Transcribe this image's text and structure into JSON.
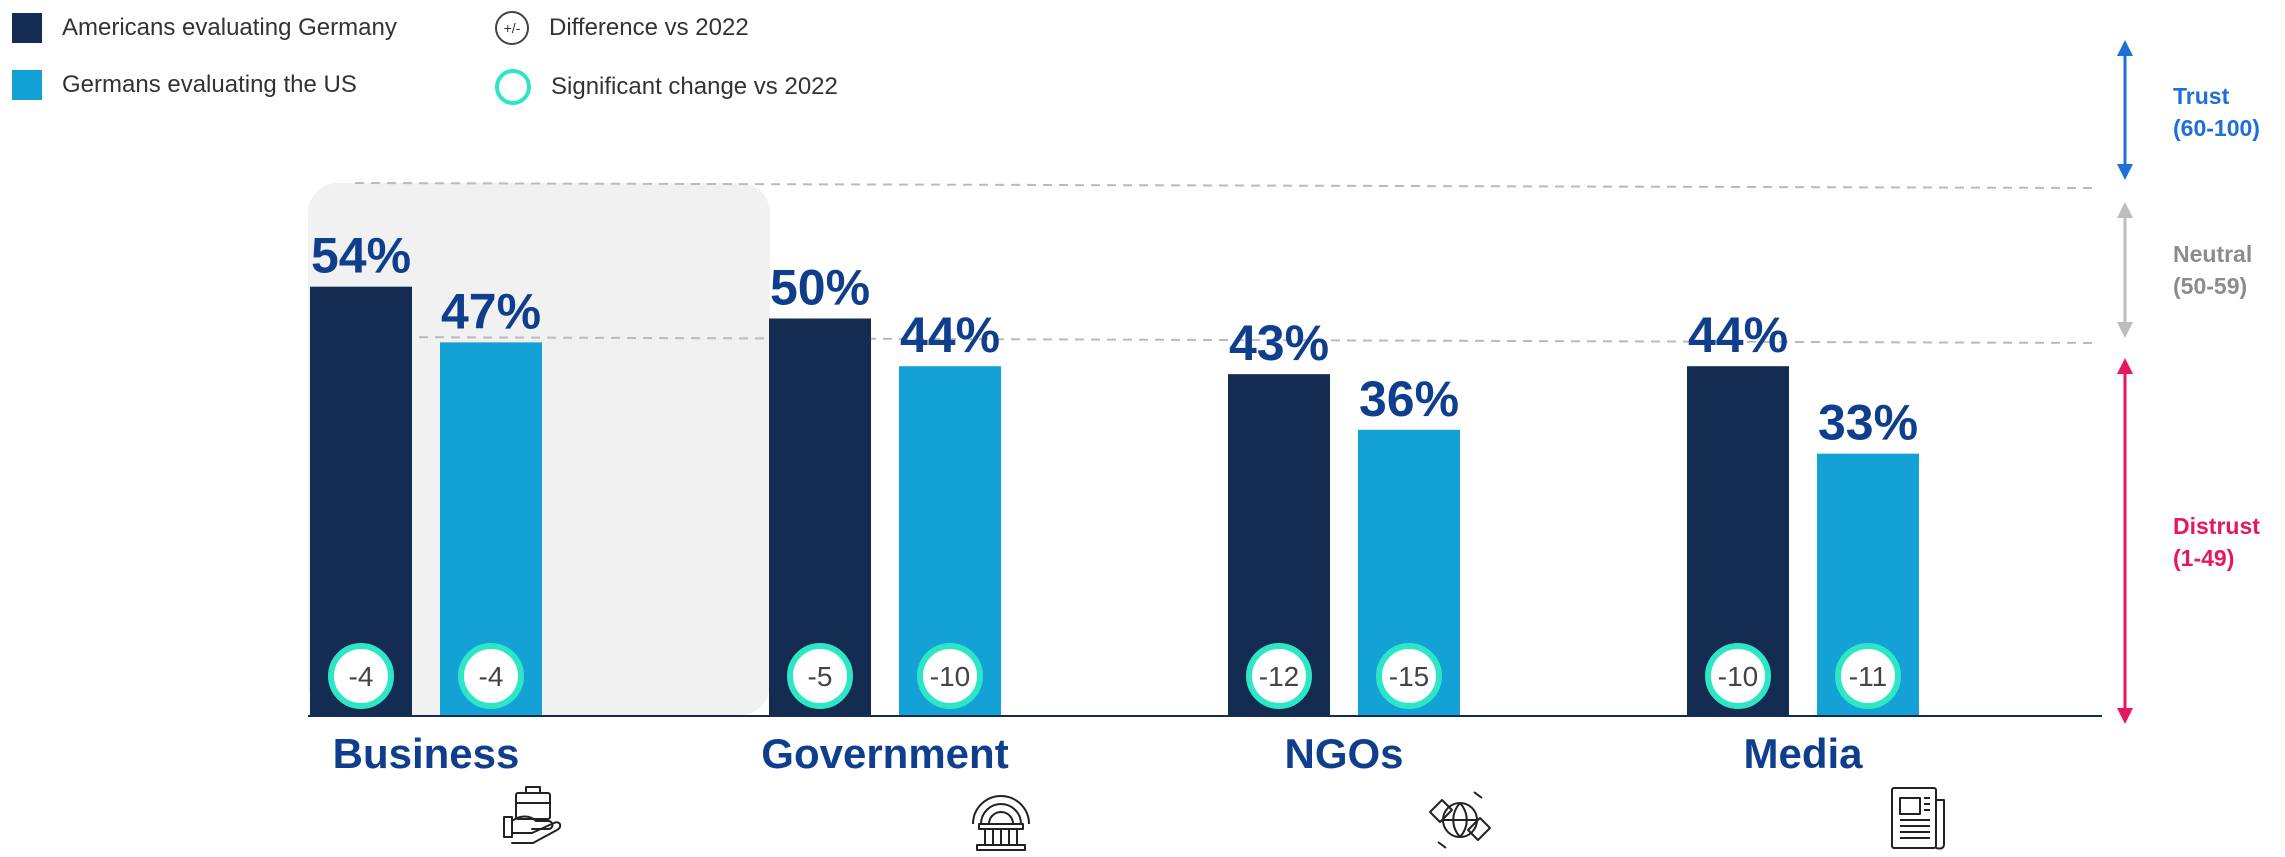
{
  "legend": {
    "series1": "Americans evaluating Germany",
    "series2": "Germans evaluating the US",
    "diff_symbol": "+/-",
    "diff_label": "Difference vs 2022",
    "sig_label": "Significant change vs 2022"
  },
  "scale": {
    "trust": {
      "label": "Trust",
      "range": "(60-100)",
      "color": "#1e6fd9"
    },
    "neutral": {
      "label": "Neutral",
      "range": "(50-59)",
      "color": "#8c8c8c"
    },
    "distrust": {
      "label": "Distrust",
      "range": "(1-49)",
      "color": "#e8175d"
    }
  },
  "colors": {
    "series1": "#142b52",
    "series2": "#14a2d6",
    "value_label": "#0f3f8c",
    "significant_ring": "#2de6c6",
    "highlight_bg": "#f1f1f1"
  },
  "chart_data": {
    "type": "bar",
    "categories": [
      "Business",
      "Government",
      "NGOs",
      "Media"
    ],
    "category_icons": [
      "briefcase-hand-icon",
      "government-building-icon",
      "handshake-globe-icon",
      "newspaper-icon"
    ],
    "series": [
      {
        "name": "Americans evaluating Germany",
        "values": [
          54,
          50,
          43,
          44
        ],
        "labels": [
          "54%",
          "50%",
          "43%",
          "44%"
        ],
        "diff": [
          "-4",
          "-5",
          "-12",
          "-10"
        ]
      },
      {
        "name": "Germans evaluating the US",
        "values": [
          47,
          44,
          36,
          33
        ],
        "labels": [
          "47%",
          "44%",
          "36%",
          "33%"
        ],
        "diff": [
          "-4",
          "-10",
          "-15",
          "-11"
        ]
      }
    ],
    "ylim": [
      0,
      60
    ],
    "reference_lines": [
      50,
      60
    ],
    "highlighted_category": "Business",
    "all_changes_significant": true
  }
}
